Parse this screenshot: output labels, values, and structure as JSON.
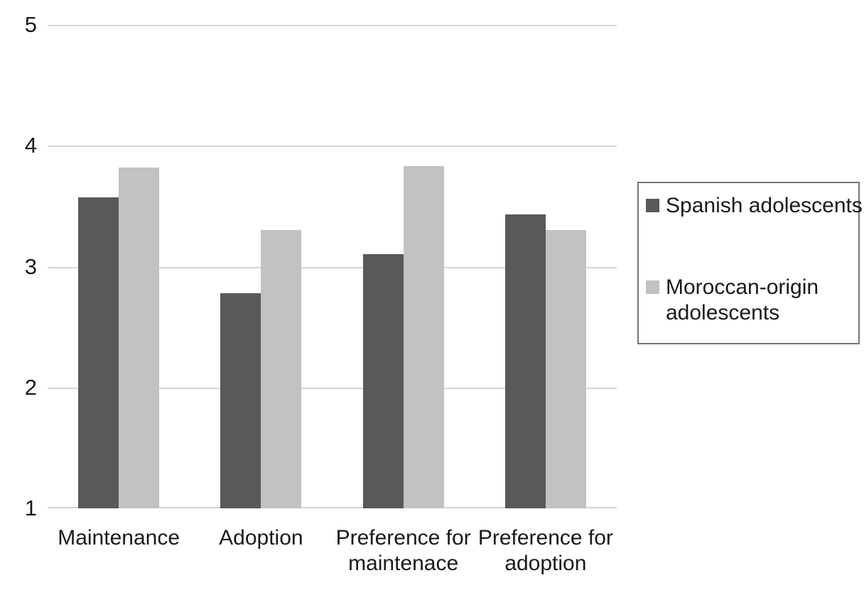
{
  "chart_data": {
    "type": "bar",
    "categories": [
      "Maintenance",
      "Adoption",
      "Preference for maintenace",
      "Preference for adoption"
    ],
    "series": [
      {
        "name": "Spanish adolescents",
        "color": "#595959",
        "values": [
          3.57,
          2.78,
          3.1,
          3.43
        ]
      },
      {
        "name": "Moroccan-origin adolescents",
        "color": "#c2c2c2",
        "values": [
          3.82,
          3.3,
          3.83,
          3.3
        ]
      }
    ],
    "y_ticks": [
      5,
      4,
      3,
      2,
      1
    ],
    "ylim": [
      1,
      5
    ],
    "grid": true,
    "legend_position": "right"
  },
  "colors": {
    "gridline": "#d6d6d6",
    "text": "#1a1a1a",
    "legend_border": "#757575",
    "background": "#ffffff"
  }
}
